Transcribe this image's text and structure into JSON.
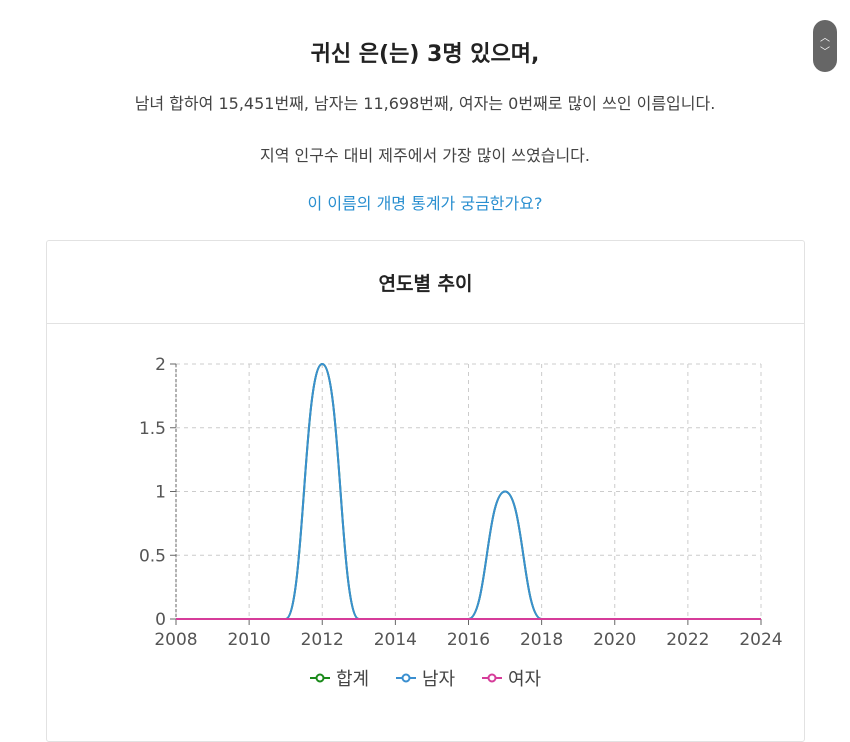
{
  "header": {
    "title": "귀신 은(는) 3명 있으며,",
    "rank_line": "남녀 합하여 15,451번째, 남자는 11,698번째, 여자는 0번째로 많이 쓰인 이름입니다.",
    "region_line": "지역 인구수 대비 제주에서 가장 많이 쓰였습니다.",
    "link": "이 이름의 개명 통계가 궁금한가요?"
  },
  "scroll_buttons": {
    "up_icon": "chevron-up-icon",
    "down_icon": "chevron-down-icon"
  },
  "chart_data": {
    "type": "line",
    "title": "연도별 추이",
    "xlabel": "",
    "ylabel": "",
    "x": [
      2008,
      2009,
      2010,
      2011,
      2012,
      2013,
      2014,
      2015,
      2016,
      2017,
      2018,
      2019,
      2020,
      2021,
      2022,
      2023,
      2024
    ],
    "xlim": [
      2008,
      2024
    ],
    "ylim": [
      0,
      2
    ],
    "xticks": [
      "2008",
      "2010",
      "2012",
      "2014",
      "2016",
      "2018",
      "2020",
      "2022",
      "2024"
    ],
    "yticks": [
      "0",
      "0.5",
      "1",
      "1.5",
      "2"
    ],
    "grid": true,
    "legend_position": "bottom",
    "smooth": true,
    "series": [
      {
        "name": "합계",
        "color": "#1a8a1a",
        "values": [
          0,
          0,
          0,
          0,
          2,
          0,
          0,
          0,
          0,
          1,
          0,
          0,
          0,
          0,
          0,
          0,
          0
        ]
      },
      {
        "name": "남자",
        "color": "#3a8fd0",
        "values": [
          0,
          0,
          0,
          0,
          2,
          0,
          0,
          0,
          0,
          1,
          0,
          0,
          0,
          0,
          0,
          0,
          0
        ]
      },
      {
        "name": "여자",
        "color": "#d63c9a",
        "values": [
          0,
          0,
          0,
          0,
          0,
          0,
          0,
          0,
          0,
          0,
          0,
          0,
          0,
          0,
          0,
          0,
          0
        ]
      }
    ]
  }
}
